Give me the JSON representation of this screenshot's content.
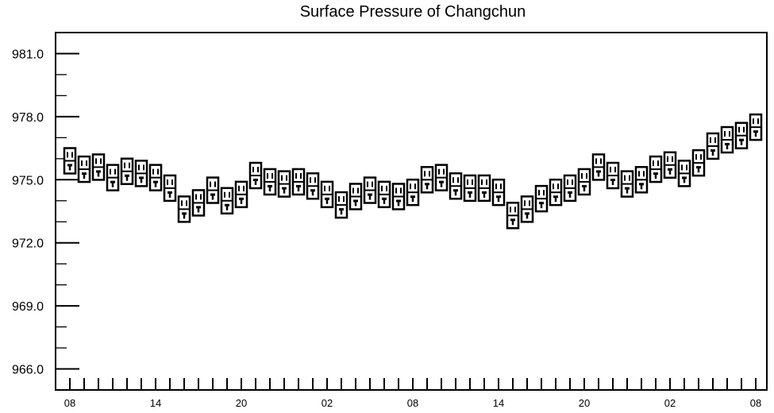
{
  "chart_data": {
    "type": "box",
    "title": "Surface Pressure of Changchun",
    "xlabel": "",
    "ylabel": "",
    "ylim": [
      965,
      982.0
    ],
    "y_ticks": [
      "966.0",
      "969.0",
      "972.0",
      "975.0",
      "978.0",
      "981.0"
    ],
    "x_tick_labels": [
      "08",
      "14",
      "20",
      "02",
      "08",
      "14",
      "20",
      "02",
      "08"
    ],
    "grid": false,
    "series": [
      {
        "values": [
          975.9,
          975.5,
          975.6,
          975.1,
          975.4,
          975.3,
          975.1,
          974.6,
          973.6,
          973.9,
          974.5,
          974.0,
          974.3,
          975.2,
          974.9,
          974.8,
          974.9,
          974.7,
          974.3,
          973.8,
          974.2,
          974.5,
          974.3,
          974.2,
          974.4,
          975.0,
          975.1,
          974.7,
          974.6,
          974.6,
          974.4,
          973.3,
          973.6,
          974.1,
          974.4,
          974.6,
          974.9,
          975.6,
          975.2,
          974.8,
          975.0,
          975.5,
          975.7,
          975.3,
          975.8,
          976.6,
          976.9,
          977.1,
          977.5
        ]
      }
    ]
  }
}
